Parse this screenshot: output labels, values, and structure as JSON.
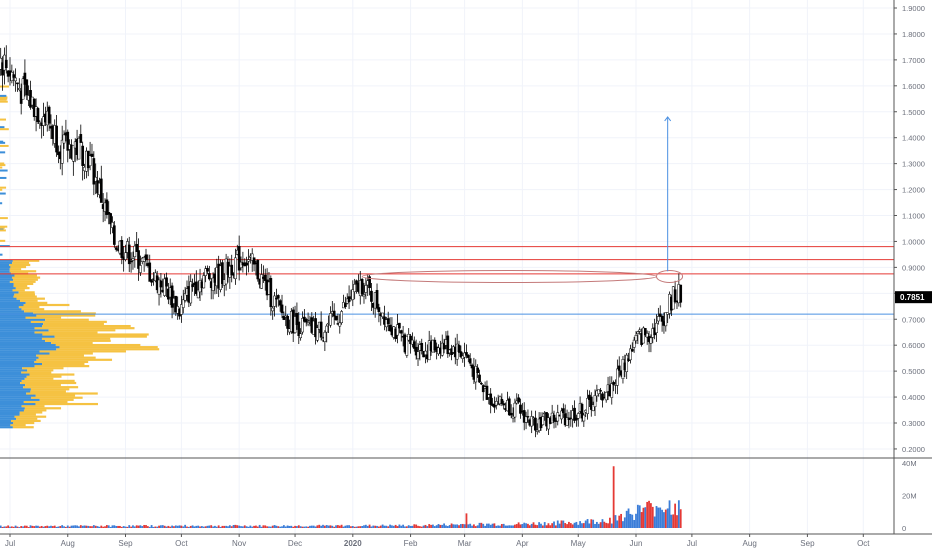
{
  "chart_data": {
    "type": "candlestick",
    "price_axis": {
      "ticks": [
        "1.9000",
        "1.8000",
        "1.7000",
        "1.6000",
        "1.5000",
        "1.4000",
        "1.3000",
        "1.2000",
        "1.1000",
        "1.0000",
        "0.9000",
        "0.8000",
        "0.7000",
        "0.6000",
        "0.5000",
        "0.4000",
        "0.3000",
        "0.2000"
      ],
      "tick_values": [
        1.9,
        1.8,
        1.7,
        1.6,
        1.5,
        1.4,
        1.3,
        1.2,
        1.1,
        1.0,
        0.9,
        0.8,
        0.7,
        0.6,
        0.5,
        0.4,
        0.3,
        0.2
      ],
      "range": [
        0.18,
        1.94
      ],
      "last_price": "0.7851",
      "last_price_value": 0.7851
    },
    "volume_axis": {
      "ticks": [
        "40M",
        "20M",
        "0"
      ],
      "tick_values": [
        40,
        20,
        0
      ],
      "range": [
        0,
        42
      ],
      "unit": "M"
    },
    "time_axis": {
      "labels": [
        "Jul",
        "Aug",
        "Sep",
        "Oct",
        "Nov",
        "Dec",
        "2020",
        "Feb",
        "Mar",
        "Apr",
        "May",
        "Jun",
        "Jul",
        "Aug",
        "Sep",
        "Oct"
      ],
      "label_dates": [
        "2019-07-01",
        "2019-08-01",
        "2019-09-01",
        "2019-10-01",
        "2019-11-01",
        "2019-12-01",
        "2020-01-01",
        "2020-02-01",
        "2020-03-01",
        "2020-04-01",
        "2020-05-01",
        "2020-06-01",
        "2020-07-01",
        "2020-08-01",
        "2020-09-01",
        "2020-10-01"
      ],
      "first_date": "2019-06-17",
      "last_candle_date": "2020-06-25"
    },
    "price_path": [
      [
        "2019-06-17",
        1.83
      ],
      [
        "2019-06-24",
        1.72
      ],
      [
        "2019-07-01",
        1.66
      ],
      [
        "2019-07-08",
        1.57
      ],
      [
        "2019-07-15",
        1.52
      ],
      [
        "2019-07-22",
        1.46
      ],
      [
        "2019-07-29",
        1.36
      ],
      [
        "2019-08-05",
        1.37
      ],
      [
        "2019-08-12",
        1.33
      ],
      [
        "2019-08-19",
        1.17
      ],
      [
        "2019-08-26",
        1.0
      ],
      [
        "2019-09-02",
        0.96
      ],
      [
        "2019-09-09",
        0.93
      ],
      [
        "2019-09-16",
        0.86
      ],
      [
        "2019-09-23",
        0.82
      ],
      [
        "2019-09-30",
        0.73
      ],
      [
        "2019-10-07",
        0.83
      ],
      [
        "2019-10-14",
        0.87
      ],
      [
        "2019-10-21",
        0.86
      ],
      [
        "2019-10-28",
        0.91
      ],
      [
        "2019-11-04",
        0.94
      ],
      [
        "2019-11-11",
        0.88
      ],
      [
        "2019-11-18",
        0.79
      ],
      [
        "2019-11-25",
        0.71
      ],
      [
        "2019-12-02",
        0.68
      ],
      [
        "2019-12-09",
        0.66
      ],
      [
        "2019-12-16",
        0.66
      ],
      [
        "2019-12-23",
        0.7
      ],
      [
        "2019-12-30",
        0.77
      ],
      [
        "2020-01-06",
        0.84
      ],
      [
        "2020-01-13",
        0.77
      ],
      [
        "2020-01-20",
        0.7
      ],
      [
        "2020-01-27",
        0.62
      ],
      [
        "2020-02-03",
        0.6
      ],
      [
        "2020-02-10",
        0.58
      ],
      [
        "2020-02-17",
        0.6
      ],
      [
        "2020-02-24",
        0.59
      ],
      [
        "2020-03-02",
        0.56
      ],
      [
        "2020-03-09",
        0.45
      ],
      [
        "2020-03-16",
        0.39
      ],
      [
        "2020-03-23",
        0.37
      ],
      [
        "2020-03-30",
        0.35
      ],
      [
        "2020-04-06",
        0.3
      ],
      [
        "2020-04-13",
        0.31
      ],
      [
        "2020-04-20",
        0.32
      ],
      [
        "2020-04-27",
        0.33
      ],
      [
        "2020-05-04",
        0.35
      ],
      [
        "2020-05-11",
        0.4
      ],
      [
        "2020-05-18",
        0.43
      ],
      [
        "2020-05-25",
        0.52
      ],
      [
        "2020-06-01",
        0.62
      ],
      [
        "2020-06-08",
        0.65
      ],
      [
        "2020-06-15",
        0.7
      ],
      [
        "2020-06-22",
        0.8
      ],
      [
        "2020-06-25",
        0.785
      ]
    ],
    "volume_path": [
      [
        "2019-06-17",
        1
      ],
      [
        "2019-08-01",
        1.2
      ],
      [
        "2019-10-01",
        1.3
      ],
      [
        "2019-12-01",
        1.3
      ],
      [
        "2020-02-01",
        1.5
      ],
      [
        "2020-03-01",
        2.2
      ],
      [
        "2020-04-01",
        2.4
      ],
      [
        "2020-05-01",
        3.5
      ],
      [
        "2020-05-18",
        5
      ],
      [
        "2020-05-25",
        8
      ],
      [
        "2020-06-01",
        10
      ],
      [
        "2020-06-08",
        12
      ],
      [
        "2020-06-15",
        14
      ],
      [
        "2020-06-25",
        12
      ]
    ],
    "volume_spikes": [
      [
        "2020-05-20",
        38
      ],
      [
        "2020-03-02",
        9
      ],
      [
        "2020-06-10",
        13
      ],
      [
        "2020-06-19",
        17
      ],
      [
        "2020-06-22",
        15
      ]
    ],
    "horizontal_levels": [
      {
        "price": 0.98,
        "color": "#e53935"
      },
      {
        "price": 0.93,
        "color": "#e53935"
      },
      {
        "price": 0.875,
        "color": "#e53935"
      },
      {
        "price": 0.72,
        "color": "#4a90e2"
      }
    ],
    "ellipses": [
      {
        "from": "2020-01-06",
        "to": "2020-06-12",
        "price": 0.865,
        "color": "#c47a7a"
      },
      {
        "from": "2020-06-12",
        "to": "2020-06-26",
        "price": 0.865,
        "color": "#c47a7a"
      }
    ],
    "target_arrow": {
      "date": "2020-06-18",
      "from_price": 0.885,
      "to_price": 1.48,
      "color": "#4a90e2"
    },
    "volume_profile": {
      "price_range": [
        0.28,
        0.93
      ],
      "colors": {
        "up": "#3d8fd9",
        "down": "#f5c242"
      },
      "upper_band_price_range": [
        0.93,
        1.62
      ]
    },
    "colors": {
      "up_candle": "#ffffff",
      "down_candle": "#000000",
      "candle_outline": "#000000",
      "volume_up": "#3b7dd8",
      "volume_down": "#e53935",
      "last_price_badge": "#000000",
      "grid": "#f0f3fa",
      "axis_text": "#6b6f7b"
    },
    "grid": true
  }
}
